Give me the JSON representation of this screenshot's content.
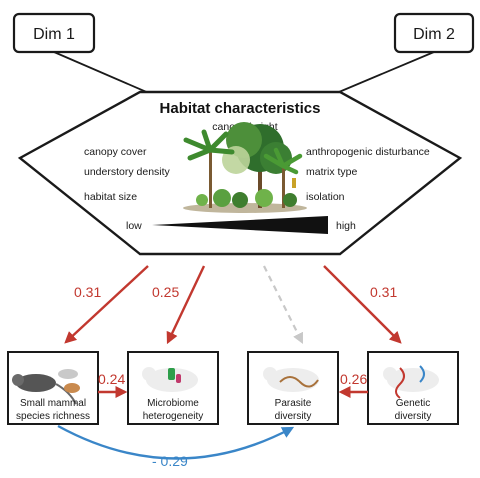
{
  "dims": {
    "dim1": "Dim 1",
    "dim2": "Dim 2"
  },
  "habitat": {
    "title": "Habitat characteristics",
    "top_characteristic": "canopy height",
    "left_characteristics": [
      "canopy cover",
      "understory density",
      "habitat size"
    ],
    "right_characteristics": [
      "anthropogenic disturbance",
      "matrix type",
      "isolation"
    ],
    "scale_low": "low",
    "scale_high": "high"
  },
  "nodes": {
    "richness": [
      "Small mammal",
      "species richness"
    ],
    "microbiome": [
      "Microbiome",
      "heterogeneity"
    ],
    "parasite": [
      "Parasite",
      "diversity"
    ],
    "genetic": [
      "Genetic",
      "diversity"
    ]
  },
  "paths": {
    "hab_to_richness": "0.31",
    "hab_to_microbiome": "0.25",
    "hab_to_genetic": "0.31",
    "richness_to_microbiome": "0.24",
    "genetic_to_parasite": "0.26",
    "richness_to_parasite": "- 0.29"
  },
  "colors": {
    "positive": "#c2382f",
    "negative": "#3a86c8",
    "nonsignificant": "#c8c8c8",
    "outline": "#1a1a1a"
  }
}
